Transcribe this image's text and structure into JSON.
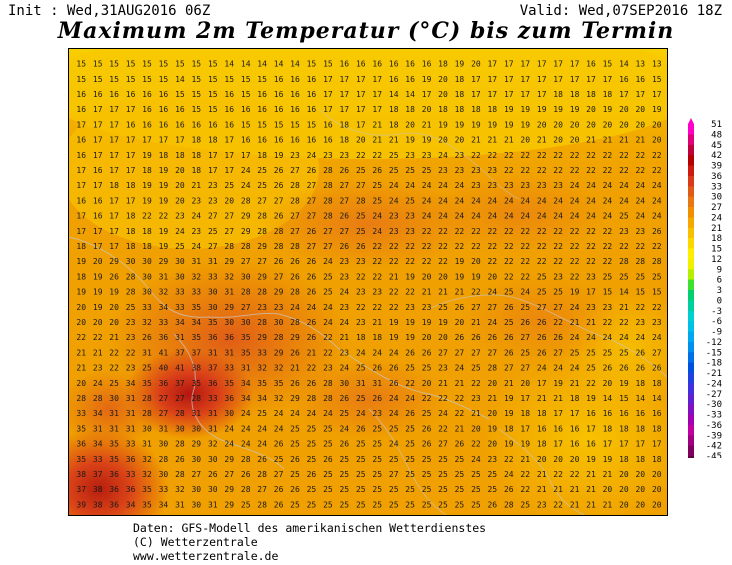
{
  "header": {
    "init": "Init : Wed,31AUG2016 06Z",
    "valid": "Valid: Wed,07SEP2016 18Z",
    "title": "Maximum 2m Temperatur (°C) bis zum Termin"
  },
  "legend": {
    "ticks": [
      "51",
      "48",
      "45",
      "42",
      "39",
      "36",
      "33",
      "30",
      "27",
      "24",
      "21",
      "18",
      "15",
      "12",
      "9",
      "6",
      "3",
      "0",
      "-3",
      "-6",
      "-9",
      "-12",
      "-15",
      "-18",
      "-21",
      "-24",
      "-27",
      "-30",
      "-33",
      "-36",
      "-39",
      "-42",
      "-45"
    ],
    "colors": [
      "#ff00c8",
      "#e0007a",
      "#c0003a",
      "#b40000",
      "#cc1a10",
      "#d83a1a",
      "#e05a18",
      "#e87814",
      "#f09000",
      "#f4a800",
      "#f8c000",
      "#fcd800",
      "#ffee00",
      "#f0f000",
      "#b4f000",
      "#40e030",
      "#00d070",
      "#00d0a0",
      "#00d0d0",
      "#00c0e8",
      "#00a8f0",
      "#0090f0",
      "#0070e8",
      "#0050e0",
      "#2040e0",
      "#4030e0",
      "#6020d0",
      "#8010c0",
      "#a000b0",
      "#c000a0",
      "#a00080",
      "#800060",
      "#600040"
    ]
  },
  "map": {
    "temperature_rows": [
      "15 15 15 15 15 15 15 15 15 14 14 14 14 14 15 15 16 16 16 16 16 16 18 19 20 17 17 17 17 17 17 16 15 14 13 13",
      "15 15 15 15 15 15 14 15 15 15 15 15 16 16 16 17 17 17 17 16 16 19 20 18 17 17 17 17 17 17 17 17 17 16 16 15",
      "16 16 16 16 16 16 15 15 15 16 15 16 16 16 16 17 17 17 17 14 14 17 20 18 17 17 17 17 17 18 18 18 18 17 17 17",
      "16 17 17 17 16 16 16 15 15 16 16 16 16 16 16 17 17 17 17 18 18 20 18 18 18 18 19 19 19 19 19 20 19 20 20 19",
      "17 17 17 16 16 16 16 16 16 16 15 15 15 15 15 16 18 17 21 18 20 21 19 19 19 19 19 19 20 20 20 20 20 20 20 20",
      "16 17 17 17 17 17 17 18 18 17 16 16 16 16 16 16 18 20 21 21 19 19 20 20 21 21 21 20 21 20 20 21 21 21 21 20",
      "16 17 17 17 19 18 18 18 17 17 17 18 19 23 24 23 23 22 22 25 23 23 24 23 22 22 22 22 22 22 22 22 22 22 22 22",
      "17 16 17 17 18 19 20 18 17 17 24 25 26 27 26 28 26 25 26 25 25 25 23 23 23 23 22 22 22 22 22 22 22 22 22 22",
      "17 17 18 18 19 19 20 21 23 25 24 25 26 28 27 28 27 27 25 24 24 24 24 24 23 23 23 23 23 23 24 24 24 24 24 24",
      "16 16 17 17 19 19 20 23 23 20 28 27 27 28 27 28 27 28 25 24 25 24 24 24 24 24 24 24 24 24 24 24 24 24 24 24",
      "17 16 17 18 22 22 23 24 27 27 29 28 26 27 27 28 26 25 24 23 23 24 24 24 24 24 24 24 24 24 24 24 24 25 24 24",
      "17 17 17 18 18 19 24 23 25 27 29 28 28 27 26 27 27 25 24 23 23 22 22 22 22 22 22 22 22 22 22 22 22 23 23 26",
      "18 17 17 18 18 19 25 24 27 28 28 29 28 28 27 27 26 26 22 22 22 22 22 22 22 22 22 22 22 22 22 22 22 22 22 22",
      "19 20 29 30 30 29 30 31 31 29 27 27 26 26 26 24 23 23 22 22 22 22 22 19 20 22 22 22 22 22 22 22 22 28 28 28",
      "18 19 26 28 30 31 30 32 33 32 30 29 27 26 26 25 23 22 22 21 19 20 20 19 19 20 22 22 25 23 22 23 25 25 25 25",
      "19 19 19 28 30 32 33 33 30 31 28 28 29 28 26 25 24 23 23 22 22 21 21 21 22 24 25 24 25 25 19 17 15 14 15 15",
      "20 19 20 25 33 34 33 35 30 29 27 23 23 24 24 24 23 22 22 22 23 23 25 26 27 27 26 25 27 27 24 23 23 21 22 22",
      "20 20 20 23 32 33 34 34 35 30 30 28 30 28 26 24 24 23 21 19 19 19 19 20 21 24 25 26 26 22 21 21 22 22 23 23",
      "22 22 21 23 26 36 31 35 36 36 35 29 28 29 26 22 21 18 18 19 19 20 20 26 26 26 26 27 26 26 24 24 24 24 24 24",
      "21 21 22 22 31 41 37 37 31 31 35 33 29 26 21 22 23 24 24 24 26 26 27 27 27 27 26 25 26 27 25 25 25 25 26 27",
      "21 23 22 23 25 40 41 38 37 33 31 32 32 21 22 23 24 25 26 26 25 25 23 24 25 28 27 27 24 24 24 25 26 26 26 26",
      "20 24 25 34 35 36 37 35 36 35 34 35 35 26 26 28 30 31 31 26 22 20 21 21 22 20 21 20 17 19 21 22 20 19 18 18",
      "28 28 30 31 28 27 27 28 33 36 34 34 32 29 28 28 26 25 26 24 24 22 22 22 23 21 19 17 21 21 18 19 14 15 14 14",
      "33 34 31 31 28 27 28 31 31 30 24 25 24 24 24 24 25 24 23 24 26 25 24 22 21 20 19 18 18 17 17 16 16 16 16 16",
      "35 31 31 31 30 31 30 30 31 24 24 24 24 25 25 25 24 26 25 25 25 26 22 21 20 19 18 17 16 16 16 17 18 18 18 18",
      "36 34 35 33 31 30 28 29 32 24 24 24 26 25 25 25 26 25 25 24 25 26 27 26 22 20 19 19 18 17 16 16 17 17 17 17",
      "35 33 35 36 32 28 26 30 30 29 28 26 25 26 25 26 25 25 25 25 25 25 25 25 24 23 22 21 20 20 20 19 19 18 18 18",
      "38 37 36 33 32 30 28 27 26 27 26 28 27 25 26 25 25 25 25 27 25 25 25 25 25 25 24 22 21 22 22 21 21 20 20 20",
      "37 38 36 36 35 33 32 30 30 29 28 27 26 26 25 25 25 25 25 25 25 25 25 25 25 25 26 22 21 21 21 21 20 20 20 20",
      "39 38 36 34 35 34 31 30 31 29 25 28 26 25 25 25 25 25 25 25 25 25 25 25 25 26 28 25 23 22 21 21 21 20 20 20"
    ]
  },
  "footer": {
    "line1": "Daten: GFS-Modell des amerikanischen Wetterdienstes",
    "line2": "(C) Wetterzentrale",
    "line3": "www.wetterzentrale.de"
  }
}
